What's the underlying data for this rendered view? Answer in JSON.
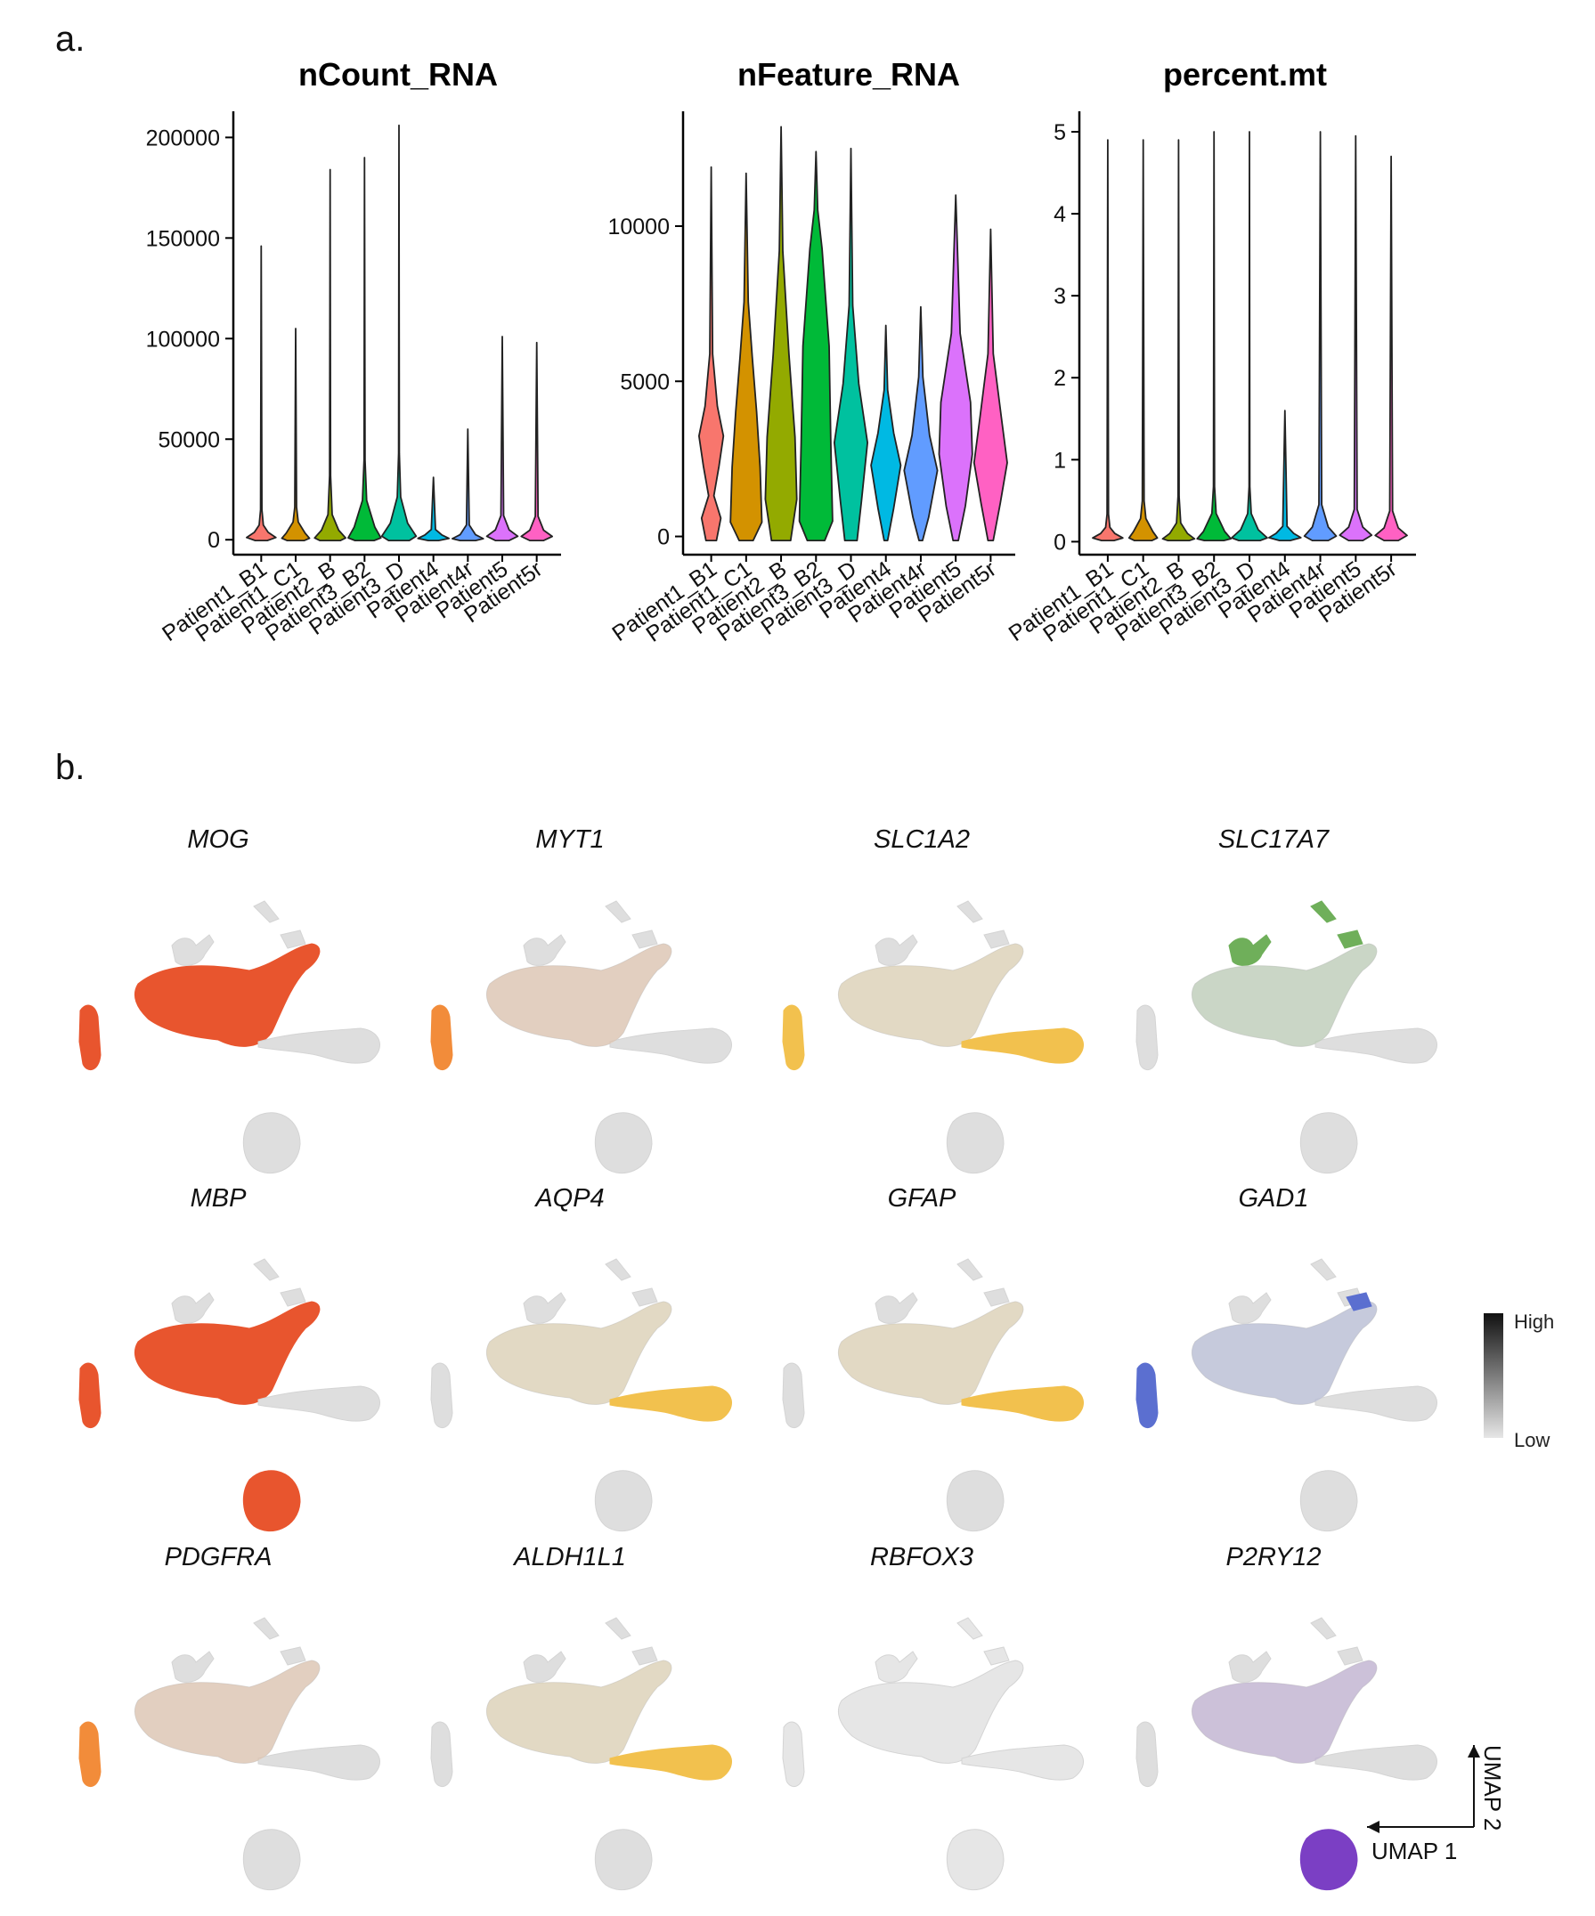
{
  "panel_labels": {
    "a": "a.",
    "b": "b."
  },
  "colors": [
    "#F8766D",
    "#D39200",
    "#93AA00",
    "#00BA38",
    "#00C19F",
    "#00B9E3",
    "#619CFF",
    "#DB72FB",
    "#FF61C3"
  ],
  "chart_data": [
    {
      "type": "violin",
      "title": "nCount_RNA",
      "categories": [
        "Patient1_B1",
        "Patient1_C1",
        "Patient2_B",
        "Patient3_B2",
        "Patient3_D",
        "Patient4",
        "Patient4r",
        "Patient5",
        "Patient5r"
      ],
      "yticks": [
        0,
        50000,
        100000,
        150000,
        200000
      ],
      "ytick_labels": [
        "0",
        "50000",
        "100000",
        "150000",
        "200000"
      ],
      "ylim": [
        -3000,
        213000
      ],
      "max": [
        146000,
        105000,
        184000,
        190000,
        206000,
        31000,
        55000,
        101000,
        98000
      ],
      "median": [
        9000,
        8000,
        6000,
        8000,
        10000,
        7000,
        6000,
        7000,
        7000
      ],
      "xlabel": "",
      "ylabel": ""
    },
    {
      "type": "violin",
      "title": "nFeature_RNA",
      "categories": [
        "Patient1_B1",
        "Patient1_C1",
        "Patient2_B",
        "Patient3_B2",
        "Patient3_D",
        "Patient4",
        "Patient4r",
        "Patient5",
        "Patient5r"
      ],
      "yticks": [
        0,
        5000,
        10000
      ],
      "ytick_labels": [
        "0",
        "5000",
        "10000"
      ],
      "ylim": [
        -300,
        13700
      ],
      "max": [
        11900,
        11700,
        13200,
        12400,
        12500,
        6800,
        7400,
        11000,
        9900
      ],
      "median": [
        3000,
        4500,
        3000,
        4500,
        3500,
        2700,
        2500,
        2900,
        2400
      ],
      "xlabel": "",
      "ylabel": ""
    },
    {
      "type": "violin",
      "title": "percent.mt",
      "categories": [
        "Patient1_B1",
        "Patient1_C1",
        "Patient2_B",
        "Patient3_B2",
        "Patient3_D",
        "Patient4",
        "Patient4r",
        "Patient5",
        "Patient5r"
      ],
      "yticks": [
        0,
        1,
        2,
        3,
        4,
        5
      ],
      "ytick_labels": [
        "0",
        "1",
        "2",
        "3",
        "4",
        "5"
      ],
      "ylim": [
        -0.05,
        5.25
      ],
      "max": [
        4.9,
        4.9,
        4.9,
        5.0,
        5.0,
        1.6,
        5.0,
        4.95,
        4.7
      ],
      "median": [
        0.03,
        0.1,
        0.1,
        0.15,
        0.3,
        0.01,
        0.15,
        0.08,
        0.03
      ],
      "xlabel": "",
      "ylabel": ""
    }
  ],
  "umap": {
    "genes": [
      {
        "name": "MOG",
        "color": "#E8552E",
        "hot": [
          1,
          4
        ]
      },
      {
        "name": "MYT1",
        "color": "#F28C3A",
        "hot": [
          4
        ]
      },
      {
        "name": "SLC1A2",
        "color": "#F2C14E",
        "hot": [
          2,
          4
        ]
      },
      {
        "name": "SLC17A7",
        "color": "#6FAF5A",
        "hot": [
          0
        ]
      },
      {
        "name": "MBP",
        "color": "#E8552E",
        "hot": [
          1,
          4,
          5
        ]
      },
      {
        "name": "AQP4",
        "color": "#F2C14E",
        "hot": [
          2
        ]
      },
      {
        "name": "GFAP",
        "color": "#F2C14E",
        "hot": [
          2
        ]
      },
      {
        "name": "GAD1",
        "color": "#5B6FD0",
        "hot": [
          6,
          4
        ]
      },
      {
        "name": "PDGFRA",
        "color": "#F28C3A",
        "hot": [
          4
        ]
      },
      {
        "name": "ALDH1L1",
        "color": "#F2C14E",
        "hot": [
          2
        ]
      },
      {
        "name": "RBFOX3",
        "color": "#CFCFCF",
        "hot": []
      },
      {
        "name": "P2RY12",
        "color": "#7B3FC4",
        "hot": [
          5
        ]
      }
    ],
    "legend": {
      "high": "High",
      "low": "Low"
    },
    "axis_labels": {
      "x": "UMAP 1",
      "y": "UMAP 2"
    }
  }
}
